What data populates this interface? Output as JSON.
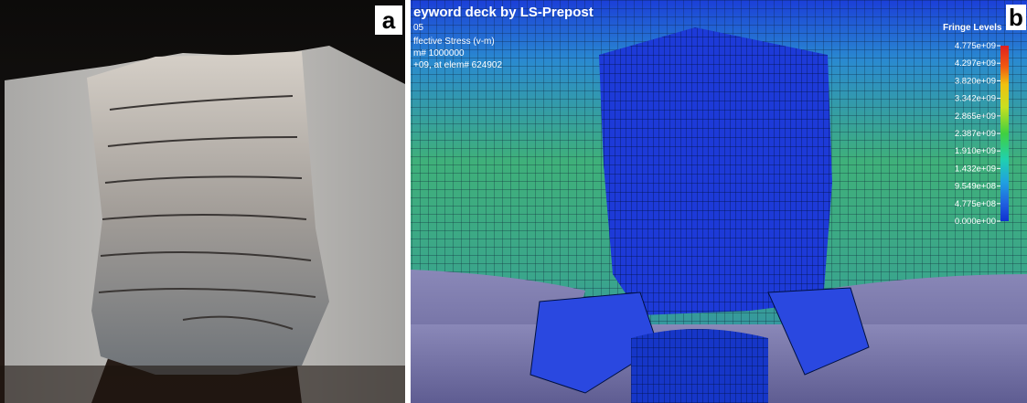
{
  "panel_a": {
    "label": "a"
  },
  "panel_b": {
    "label": "b",
    "header": [
      "eyword deck by LS-Prepost",
      "05",
      "ffective Stress (v-m)",
      "m# 1000000",
      "+09, at elem# 624902"
    ],
    "legend": {
      "title": "Fringe Levels",
      "levels": [
        "4.775e+09",
        "4.297e+09",
        "3.820e+09",
        "3.342e+09",
        "2.865e+09",
        "2.387e+09",
        "1.910e+09",
        "1.432e+09",
        "9.549e+08",
        "4.775e+08",
        "0.000e+00"
      ]
    }
  }
}
